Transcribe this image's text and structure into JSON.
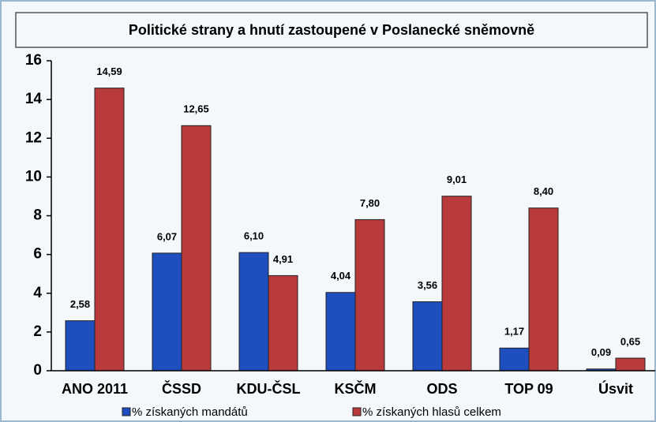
{
  "chart_data": {
    "type": "bar",
    "title": "Politické strany a hnutí zastoupené v Poslanecké sněmovně",
    "categories": [
      "ANO 2011",
      "ČSSD",
      "KDU-ČSL",
      "KSČM",
      "ODS",
      "TOP 09",
      "Úsvit"
    ],
    "series": [
      {
        "name": "% získaných mandátů",
        "color": "#1f4fbf",
        "values": [
          2.58,
          6.07,
          6.1,
          4.04,
          3.56,
          1.17,
          0.09
        ],
        "value_labels": [
          "2,58",
          "6,07",
          "6,10",
          "4,04",
          "3,56",
          "1,17",
          "0,09"
        ]
      },
      {
        "name": "% získaných hlasů celkem",
        "color": "#b83a3a",
        "values": [
          14.59,
          12.65,
          4.91,
          7.8,
          9.01,
          8.4,
          0.65
        ],
        "value_labels": [
          "14,59",
          "12,65",
          "4,91",
          "7,80",
          "9,01",
          "8,40",
          "0,65"
        ]
      }
    ],
    "ylim": [
      0,
      16
    ],
    "yticks": [
      0,
      2,
      4,
      6,
      8,
      10,
      12,
      14,
      16
    ],
    "grid": false
  }
}
